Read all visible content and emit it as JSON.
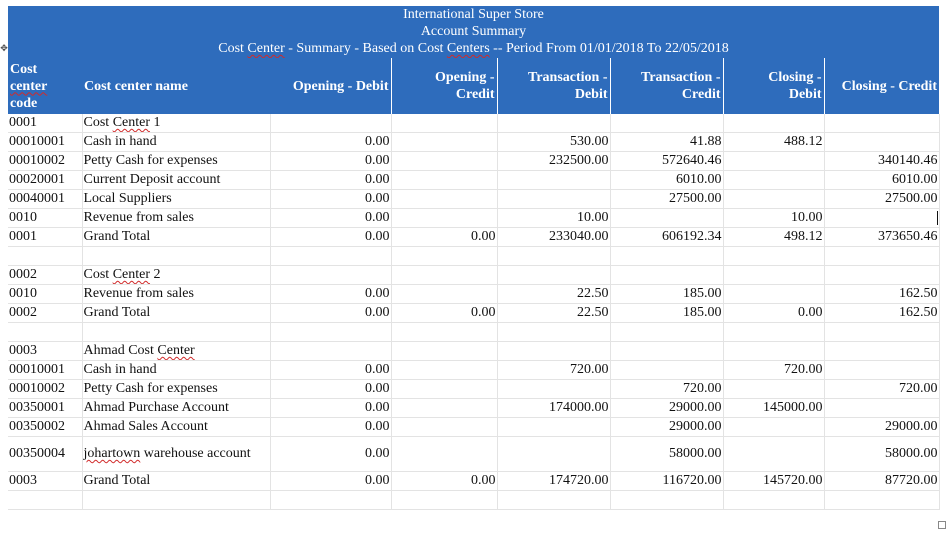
{
  "report": {
    "company": "International Super Store",
    "title": "Account Summary",
    "subtitle_prefix": "Cost ",
    "subtitle_center_word": "Center",
    "subtitle_mid": " - Summary - Based on Cost ",
    "subtitle_centers_word": "Centers",
    "subtitle_suffix": " -- Period From 01/01/2018 To 22/05/2018"
  },
  "columns": {
    "code_l1": "Cost",
    "code_l2": "center",
    "code_l3": "code",
    "name": "Cost center name",
    "opening_debit": "Opening - Debit",
    "opening_credit_l1": "Opening -",
    "opening_credit_l2": "Credit",
    "transaction_debit_l1": "Transaction -",
    "transaction_debit_l2": "Debit",
    "transaction_credit_l1": "Transaction -",
    "transaction_credit_l2": "Credit",
    "closing_debit_l1": "Closing -",
    "closing_debit_l2": "Debit",
    "closing_credit": "Closing - Credit"
  },
  "rows": [
    {
      "code": "0001",
      "name": "Cost Center 1",
      "od": "",
      "oc": "",
      "td": "",
      "tc": "",
      "cd": "",
      "cc": ""
    },
    {
      "code": "00010001",
      "name": "Cash in hand",
      "od": "0.00",
      "oc": "",
      "td": "530.00",
      "tc": "41.88",
      "cd": "488.12",
      "cc": ""
    },
    {
      "code": "00010002",
      "name": "Petty Cash for expenses",
      "od": "0.00",
      "oc": "",
      "td": "232500.00",
      "tc": "572640.46",
      "cd": "",
      "cc": "340140.46"
    },
    {
      "code": "00020001",
      "name": "Current Deposit account",
      "od": "0.00",
      "oc": "",
      "td": "",
      "tc": "6010.00",
      "cd": "",
      "cc": "6010.00"
    },
    {
      "code": "00040001",
      "name": "Local Suppliers",
      "od": "0.00",
      "oc": "",
      "td": "",
      "tc": "27500.00",
      "cd": "",
      "cc": "27500.00"
    },
    {
      "code": "0010",
      "name": "Revenue from sales",
      "od": "0.00",
      "oc": "",
      "td": "10.00",
      "tc": "",
      "cd": "10.00",
      "cc": ""
    },
    {
      "code": "0001",
      "name": "Grand Total",
      "od": "0.00",
      "oc": "0.00",
      "td": "233040.00",
      "tc": "606192.34",
      "cd": "498.12",
      "cc": "373650.46"
    },
    {
      "code": "",
      "name": "",
      "od": "",
      "oc": "",
      "td": "",
      "tc": "",
      "cd": "",
      "cc": ""
    },
    {
      "code": "0002",
      "name": "Cost Center 2",
      "od": "",
      "oc": "",
      "td": "",
      "tc": "",
      "cd": "",
      "cc": ""
    },
    {
      "code": "0010",
      "name": "Revenue from sales",
      "od": "0.00",
      "oc": "",
      "td": "22.50",
      "tc": "185.00",
      "cd": "",
      "cc": "162.50"
    },
    {
      "code": "0002",
      "name": "Grand Total",
      "od": "0.00",
      "oc": "0.00",
      "td": "22.50",
      "tc": "185.00",
      "cd": "0.00",
      "cc": "162.50"
    },
    {
      "code": "",
      "name": "",
      "od": "",
      "oc": "",
      "td": "",
      "tc": "",
      "cd": "",
      "cc": ""
    },
    {
      "code": "0003",
      "name": "Ahmad Cost Center",
      "od": "",
      "oc": "",
      "td": "",
      "tc": "",
      "cd": "",
      "cc": ""
    },
    {
      "code": "00010001",
      "name": "Cash in hand",
      "od": "0.00",
      "oc": "",
      "td": "720.00",
      "tc": "",
      "cd": "720.00",
      "cc": ""
    },
    {
      "code": "00010002",
      "name": "Petty Cash for expenses",
      "od": "0.00",
      "oc": "",
      "td": "",
      "tc": "720.00",
      "cd": "",
      "cc": "720.00"
    },
    {
      "code": "00350001",
      "name": "Ahmad Purchase Account",
      "od": "0.00",
      "oc": "",
      "td": "174000.00",
      "tc": "29000.00",
      "cd": "145000.00",
      "cc": ""
    },
    {
      "code": "00350002",
      "name": "Ahmad Sales Account",
      "od": "0.00",
      "oc": "",
      "td": "",
      "tc": "29000.00",
      "cd": "",
      "cc": "29000.00"
    },
    {
      "code": "00350004",
      "name": "johartown warehouse account",
      "od": "0.00",
      "oc": "",
      "td": "",
      "tc": "58000.00",
      "cd": "",
      "cc": "58000.00"
    },
    {
      "code": "0003",
      "name": "Grand Total",
      "od": "0.00",
      "oc": "0.00",
      "td": "174720.00",
      "tc": "116720.00",
      "cd": "145720.00",
      "cc": "87720.00"
    },
    {
      "code": "",
      "name": "",
      "od": "",
      "oc": "",
      "td": "",
      "tc": "",
      "cd": "",
      "cc": ""
    }
  ]
}
